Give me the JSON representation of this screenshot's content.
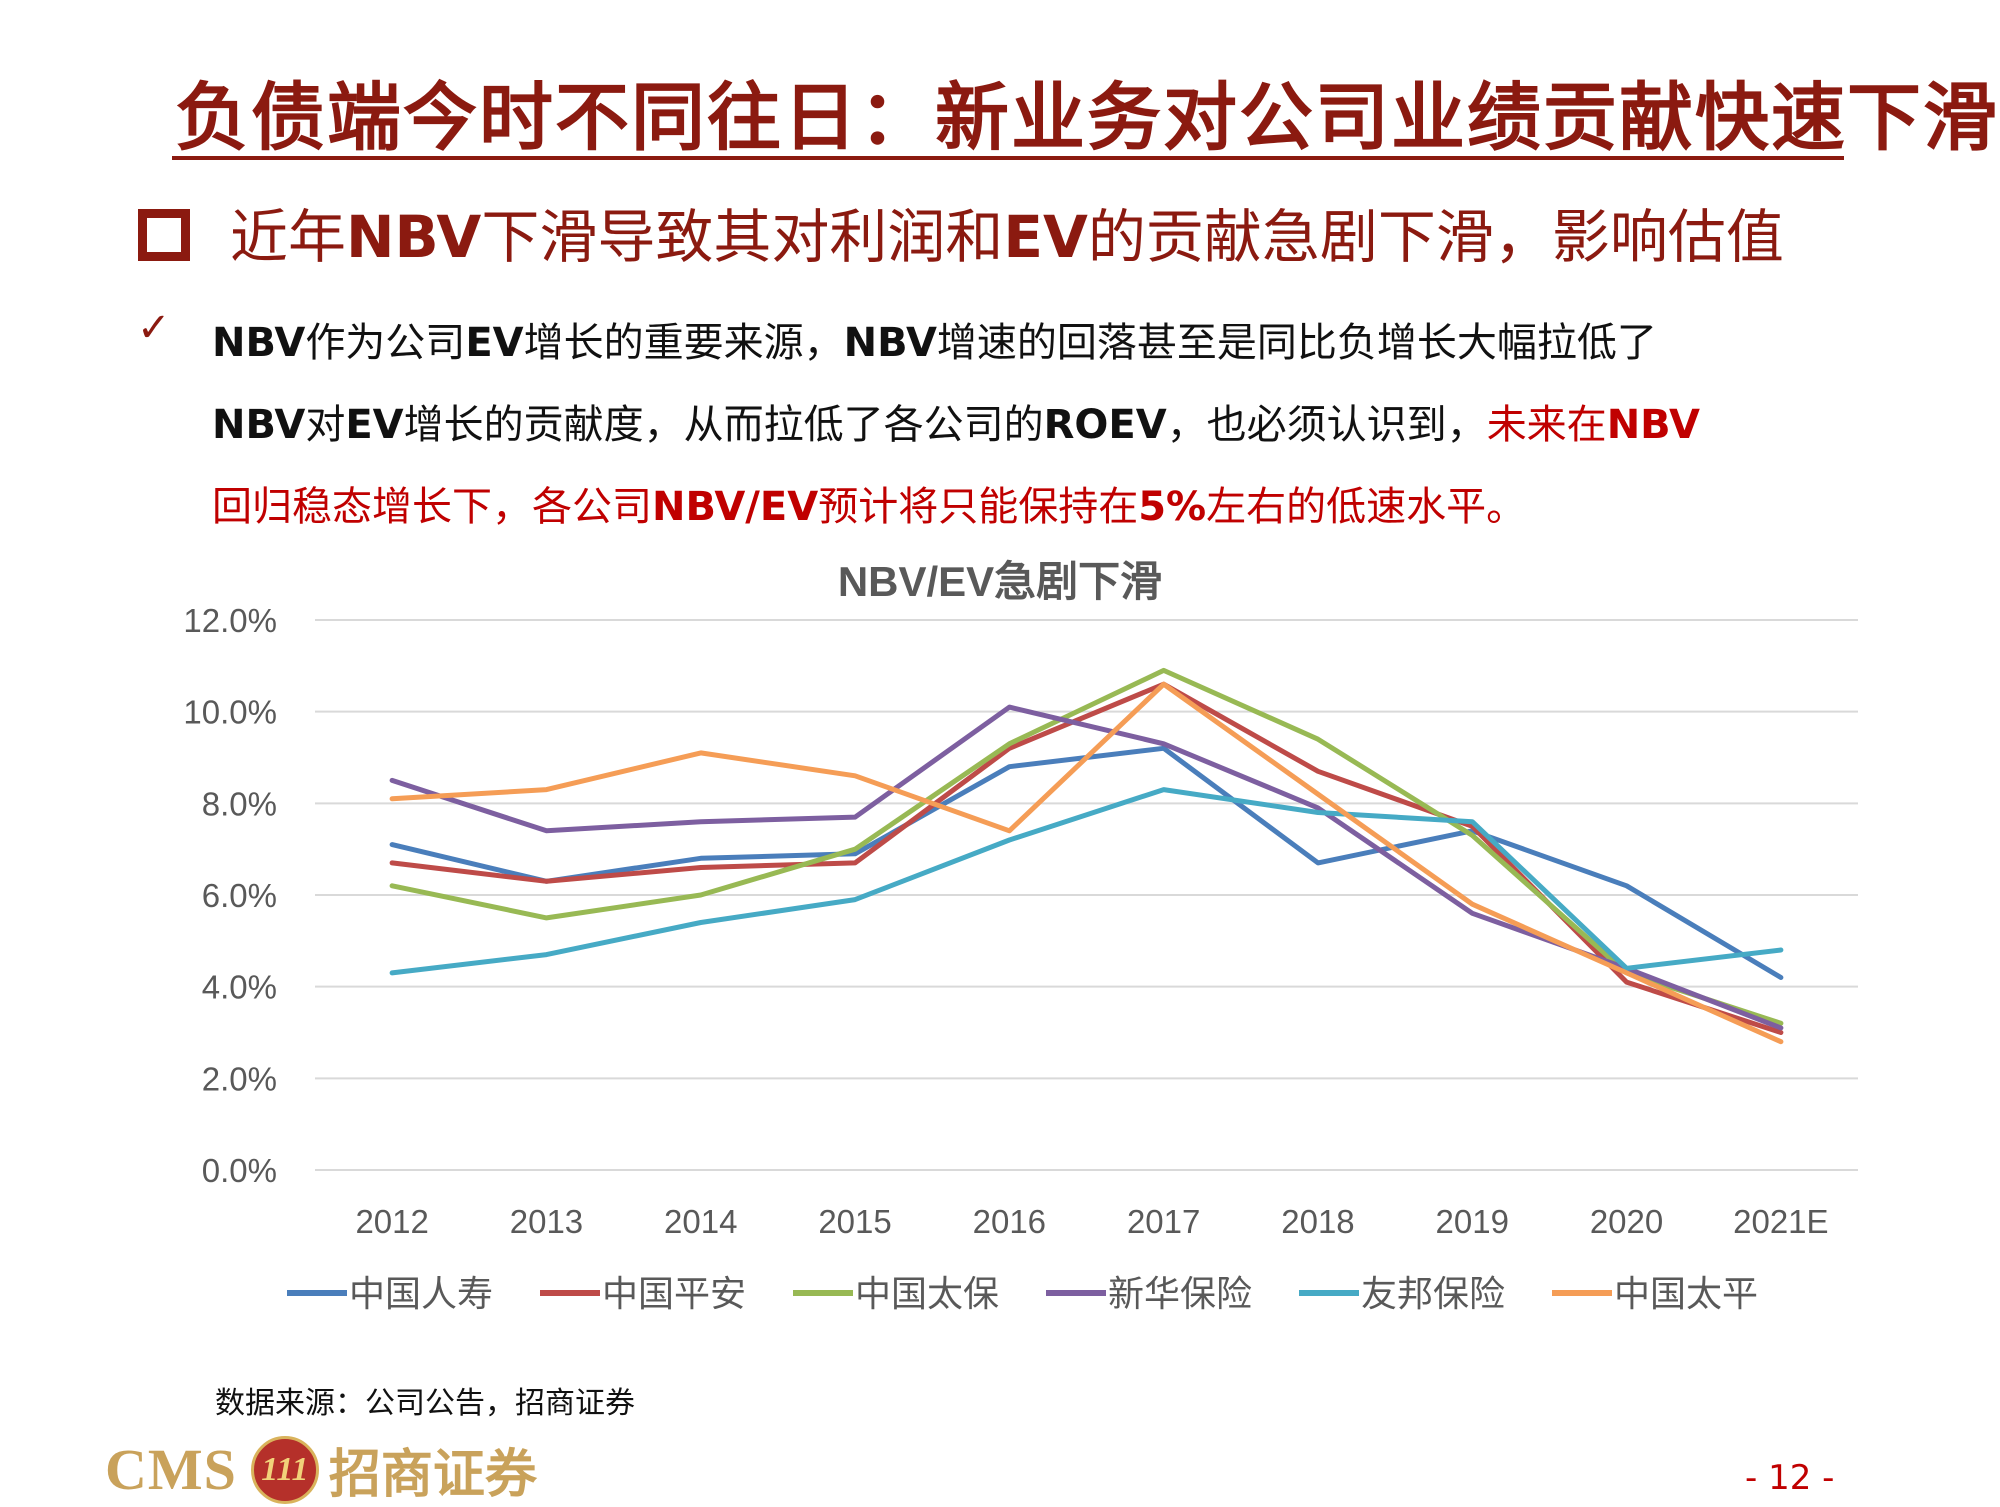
{
  "title": "负债端今时不同往日：新业务对公司业绩贡献快速下滑",
  "subhead": {
    "p1": "近年",
    "b1": "NBV",
    "p2": "下滑导致其对利润和",
    "b2": "EV",
    "p3": "的贡献急剧下滑，影响估值"
  },
  "bullet": {
    "check": "✓",
    "s1": "NBV",
    "s2": "作为公司",
    "s3": "EV",
    "s4": "增长的重要来源，",
    "s5": "NBV",
    "s6": "增速的回落甚至是同比负增长大幅拉低了",
    "s7": "NBV",
    "s8": "对",
    "s9": "EV",
    "s10": "增长的贡献度，从而拉低了各公司的",
    "s11": "ROEV",
    "s12": "，也必须认识到，",
    "r1": "未来在",
    "r2": "NBV",
    "r3": "回归稳态增长下，各公司",
    "r4": "NBV/EV",
    "r5": "预计将只能保持在",
    "r6": "5%",
    "r7": "左右的低速水平。"
  },
  "source": "数据来源：公司公告，招商证券",
  "logo": {
    "cms": "CMS",
    "emblem": "111",
    "cn": "招商证券"
  },
  "page_number": "- 12 -",
  "chart_data": {
    "type": "line",
    "title": "NBV/EV急剧下滑",
    "categories": [
      "2012",
      "2013",
      "2014",
      "2015",
      "2016",
      "2017",
      "2018",
      "2019",
      "2020",
      "2021E"
    ],
    "ylim": [
      0,
      12
    ],
    "y_ticks": [
      "0.0%",
      "2.0%",
      "4.0%",
      "6.0%",
      "8.0%",
      "10.0%",
      "12.0%"
    ],
    "unit": "%",
    "grid": true,
    "legend": "bottom",
    "series": [
      {
        "name": "中国人寿",
        "color": "#4a7ebb",
        "values": [
          7.1,
          6.3,
          6.8,
          6.9,
          8.8,
          9.2,
          6.7,
          7.4,
          6.2,
          4.2
        ]
      },
      {
        "name": "中国平安",
        "color": "#be4b48",
        "values": [
          6.7,
          6.3,
          6.6,
          6.7,
          9.2,
          10.6,
          8.7,
          7.5,
          4.1,
          3.0
        ]
      },
      {
        "name": "中国太保",
        "color": "#98b954",
        "values": [
          6.2,
          5.5,
          6.0,
          7.0,
          9.3,
          10.9,
          9.4,
          7.3,
          4.3,
          3.2
        ]
      },
      {
        "name": "新华保险",
        "color": "#7d5fa0",
        "values": [
          8.5,
          7.4,
          7.6,
          7.7,
          10.1,
          9.3,
          7.9,
          5.6,
          4.4,
          3.1
        ]
      },
      {
        "name": "友邦保险",
        "color": "#46aac5",
        "values": [
          4.3,
          4.7,
          5.4,
          5.9,
          7.2,
          8.3,
          7.8,
          7.6,
          4.4,
          4.8
        ]
      },
      {
        "name": "中国太平",
        "color": "#f59d56",
        "values": [
          8.1,
          8.3,
          9.1,
          8.6,
          7.4,
          10.6,
          8.2,
          5.8,
          4.3,
          2.8
        ]
      }
    ]
  }
}
